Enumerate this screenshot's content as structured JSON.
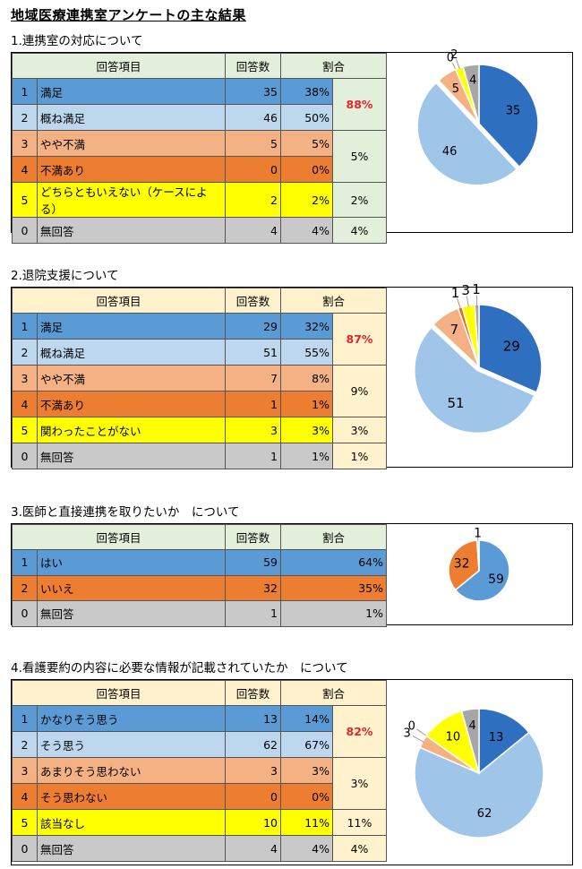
{
  "page_title": "地域医療連携室アンケートの主な結果",
  "headers": {
    "item": "回答項目",
    "count": "回答数",
    "ratio": "割合"
  },
  "colors": {
    "satisfied": "#5b9bd5",
    "mostly": "#bdd7ee",
    "somewhat": "#f4b183",
    "not": "#ed7d31",
    "other": "#ffff00",
    "none": "#c9c9c9",
    "pie_satisfied": "#2f6fc0",
    "pie_mostly": "#9fc5e8",
    "pie_somewhat": "#f4b183",
    "pie_not": "#e46c1b",
    "pie_other": "#ffff00",
    "pie_none": "#a6a6a6"
  },
  "sections": [
    {
      "title": "1.連携室の対応について",
      "header_bg": "#e2efda",
      "rows": [
        {
          "no": "1",
          "label": "満足",
          "count": "35",
          "pct": "38%",
          "color": "satisfied"
        },
        {
          "no": "2",
          "label": "概ね満足",
          "count": "46",
          "pct": "50%",
          "color": "mostly"
        },
        {
          "no": "3",
          "label": "やや不満",
          "count": "5",
          "pct": "5%",
          "color": "somewhat"
        },
        {
          "no": "4",
          "label": "不満あり",
          "count": "0",
          "pct": "0%",
          "color": "not"
        },
        {
          "no": "5",
          "label": "どちらともいえない（ケースによる）",
          "count": "2",
          "pct": "2%",
          "color": "other"
        },
        {
          "no": "0",
          "label": "無回答",
          "count": "4",
          "pct": "4%",
          "color": "none"
        }
      ],
      "summary": [
        {
          "text": "88%",
          "span": 2,
          "red": true
        },
        {
          "text": "5%",
          "span": 2,
          "red": false
        },
        {
          "text": "2%",
          "span": 1,
          "red": false
        },
        {
          "text": "4%",
          "span": 1,
          "red": false
        }
      ]
    },
    {
      "title": "2.退院支援について",
      "header_bg": "#fff2cc",
      "rows": [
        {
          "no": "1",
          "label": "満足",
          "count": "29",
          "pct": "32%",
          "color": "satisfied"
        },
        {
          "no": "2",
          "label": "概ね満足",
          "count": "51",
          "pct": "55%",
          "color": "mostly"
        },
        {
          "no": "3",
          "label": "やや不満",
          "count": "7",
          "pct": "8%",
          "color": "somewhat"
        },
        {
          "no": "4",
          "label": "不満あり",
          "count": "1",
          "pct": "1%",
          "color": "not"
        },
        {
          "no": "5",
          "label": "関わったことがない",
          "count": "3",
          "pct": "3%",
          "color": "other"
        },
        {
          "no": "0",
          "label": "無回答",
          "count": "1",
          "pct": "1%",
          "color": "none"
        }
      ],
      "summary": [
        {
          "text": "87%",
          "span": 2,
          "red": true
        },
        {
          "text": "9%",
          "span": 2,
          "red": false
        },
        {
          "text": "3%",
          "span": 1,
          "red": false
        },
        {
          "text": "1%",
          "span": 1,
          "red": false
        }
      ]
    },
    {
      "title": "3.医師と直接連携を取りたいか　について",
      "header_bg": "#e2efda",
      "rows": [
        {
          "no": "1",
          "label": "はい",
          "count": "59",
          "pct": "64%",
          "color": "satisfied"
        },
        {
          "no": "2",
          "label": "いいえ",
          "count": "32",
          "pct": "35%",
          "color": "not"
        },
        {
          "no": "0",
          "label": "無回答",
          "count": "1",
          "pct": "1%",
          "color": "none"
        }
      ],
      "summary": null
    },
    {
      "title": "4.看護要約の内容に必要な情報が記載されていたか　について",
      "header_bg": "#fff2cc",
      "rows": [
        {
          "no": "1",
          "label": "かなりそう思う",
          "count": "13",
          "pct": "14%",
          "color": "satisfied"
        },
        {
          "no": "2",
          "label": "そう思う",
          "count": "62",
          "pct": "67%",
          "color": "mostly"
        },
        {
          "no": "3",
          "label": "あまりそう思わない",
          "count": "3",
          "pct": "3%",
          "color": "somewhat"
        },
        {
          "no": "4",
          "label": "そう思わない",
          "count": "0",
          "pct": "0%",
          "color": "not"
        },
        {
          "no": "5",
          "label": "該当なし",
          "count": "10",
          "pct": "11%",
          "color": "other"
        },
        {
          "no": "0",
          "label": "無回答",
          "count": "4",
          "pct": "4%",
          "color": "none"
        }
      ],
      "summary": [
        {
          "text": "82%",
          "span": 2,
          "red": true
        },
        {
          "text": "3%",
          "span": 2,
          "red": false
        },
        {
          "text": "11%",
          "span": 1,
          "red": false
        },
        {
          "text": "4%",
          "span": 1,
          "red": false
        }
      ]
    }
  ],
  "chart_data": [
    {
      "type": "pie",
      "labels": [
        "満足",
        "概ね満足",
        "やや不満",
        "不満あり",
        "どちらともいえない（ケースによる）",
        "無回答"
      ],
      "values": [
        35,
        46,
        5,
        0,
        2,
        4
      ],
      "data_labels": [
        "35",
        "46",
        "5",
        "0",
        "2",
        "4"
      ],
      "colors": [
        "pie_satisfied",
        "pie_mostly",
        "pie_somewhat",
        "pie_not",
        "pie_other",
        "pie_none"
      ]
    },
    {
      "type": "pie",
      "labels": [
        "満足",
        "概ね満足",
        "やや不満",
        "不満あり",
        "関わったことがない",
        "無回答"
      ],
      "values": [
        29,
        51,
        7,
        1,
        3,
        1
      ],
      "data_labels": [
        "29",
        "51",
        "7",
        "1",
        "3",
        "1"
      ],
      "colors": [
        "pie_satisfied",
        "pie_mostly",
        "pie_somewhat",
        "pie_not",
        "pie_other",
        "pie_none"
      ]
    },
    {
      "type": "pie",
      "labels": [
        "はい",
        "いいえ",
        "無回答"
      ],
      "values": [
        59,
        32,
        1
      ],
      "data_labels": [
        "59",
        "32",
        "1"
      ],
      "colors": [
        "satisfied",
        "not",
        "none"
      ]
    },
    {
      "type": "pie",
      "labels": [
        "かなりそう思う",
        "そう思う",
        "あまりそう思わない",
        "そう思わない",
        "該当なし",
        "無回答"
      ],
      "values": [
        13,
        62,
        3,
        0,
        10,
        4
      ],
      "data_labels": [
        "13",
        "62",
        "3",
        "0",
        "10",
        "4"
      ],
      "colors": [
        "pie_satisfied",
        "pie_mostly",
        "pie_somewhat",
        "pie_not",
        "pie_other",
        "pie_none"
      ]
    }
  ]
}
